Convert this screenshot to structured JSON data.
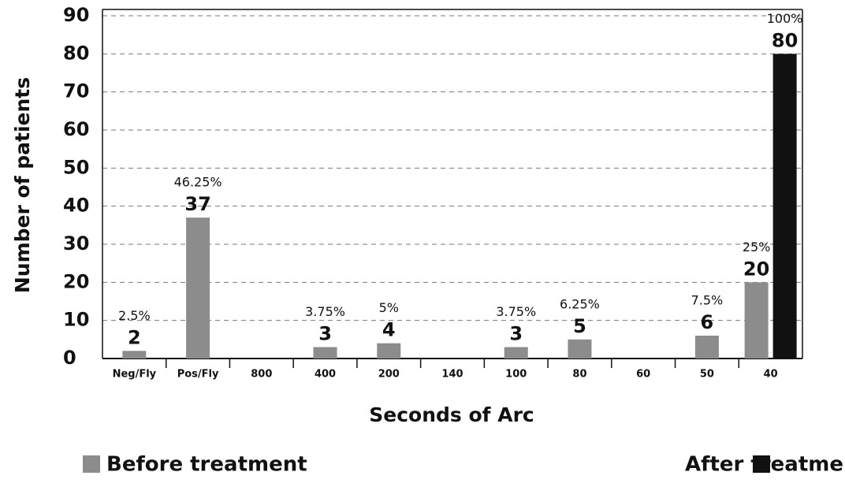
{
  "chart_data": {
    "type": "bar",
    "x_label": "Seconds of Arc",
    "y_label": "Number of patients",
    "categories": [
      "Neg/Fly",
      "Pos/Fly",
      "800",
      "400",
      "200",
      "140",
      "100",
      "80",
      "60",
      "50",
      "40"
    ],
    "series": [
      {
        "name": "Before treatment",
        "color": "#8c8c8c",
        "values": [
          2,
          37,
          null,
          3,
          4,
          null,
          3,
          5,
          null,
          6,
          20
        ],
        "percent_labels": [
          "2.5%",
          "46.25%",
          null,
          "3.75%",
          "5%",
          null,
          "3.75%",
          "6.25%",
          null,
          "7.5%",
          "25%"
        ]
      },
      {
        "name": "After treatment",
        "color": "#111111",
        "values": [
          null,
          null,
          null,
          null,
          null,
          null,
          null,
          null,
          null,
          null,
          80
        ],
        "percent_labels": [
          null,
          null,
          null,
          null,
          null,
          null,
          null,
          null,
          null,
          null,
          "100%"
        ]
      }
    ],
    "ylim": [
      0,
      90
    ],
    "yticks": [
      0,
      10,
      20,
      30,
      40,
      50,
      60,
      70,
      80,
      90
    ],
    "grid": true
  }
}
